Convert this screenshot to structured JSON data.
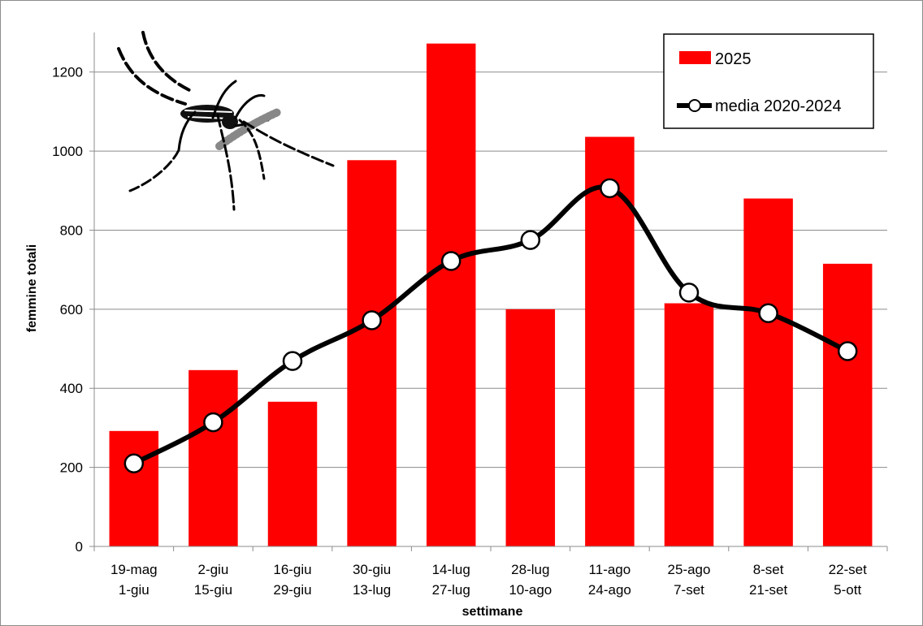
{
  "chart_data": {
    "type": "bar",
    "categories": [
      [
        "19-mag",
        "1-giu"
      ],
      [
        "2-giu",
        "15-giu"
      ],
      [
        "16-giu",
        "29-giu"
      ],
      [
        "30-giu",
        "13-lug"
      ],
      [
        "14-lug",
        "27-lug"
      ],
      [
        "28-lug",
        "10-ago"
      ],
      [
        "11-ago",
        "24-ago"
      ],
      [
        "25-ago",
        "7-set"
      ],
      [
        "8-set",
        "21-set"
      ],
      [
        "22-set",
        "5-ott"
      ]
    ],
    "series": [
      {
        "name": "2025",
        "kind": "bar",
        "color": "#ff0000",
        "values": [
          292,
          446,
          366,
          977,
          1272,
          600,
          1036,
          615,
          880,
          715
        ]
      },
      {
        "name": "media 2020-2024",
        "kind": "line",
        "color": "#000000",
        "marker": "open-circle",
        "values": [
          210,
          314,
          469,
          572,
          722,
          775,
          906,
          642,
          590,
          494
        ]
      }
    ],
    "xlabel": "settimane",
    "ylabel": "femmine totali",
    "ylim": [
      0,
      1300
    ],
    "yticks": [
      0,
      200,
      400,
      600,
      800,
      1000,
      1200
    ],
    "grid": true,
    "legend_position": "top-right"
  },
  "decoration": {
    "icon": "mosquito-icon"
  }
}
